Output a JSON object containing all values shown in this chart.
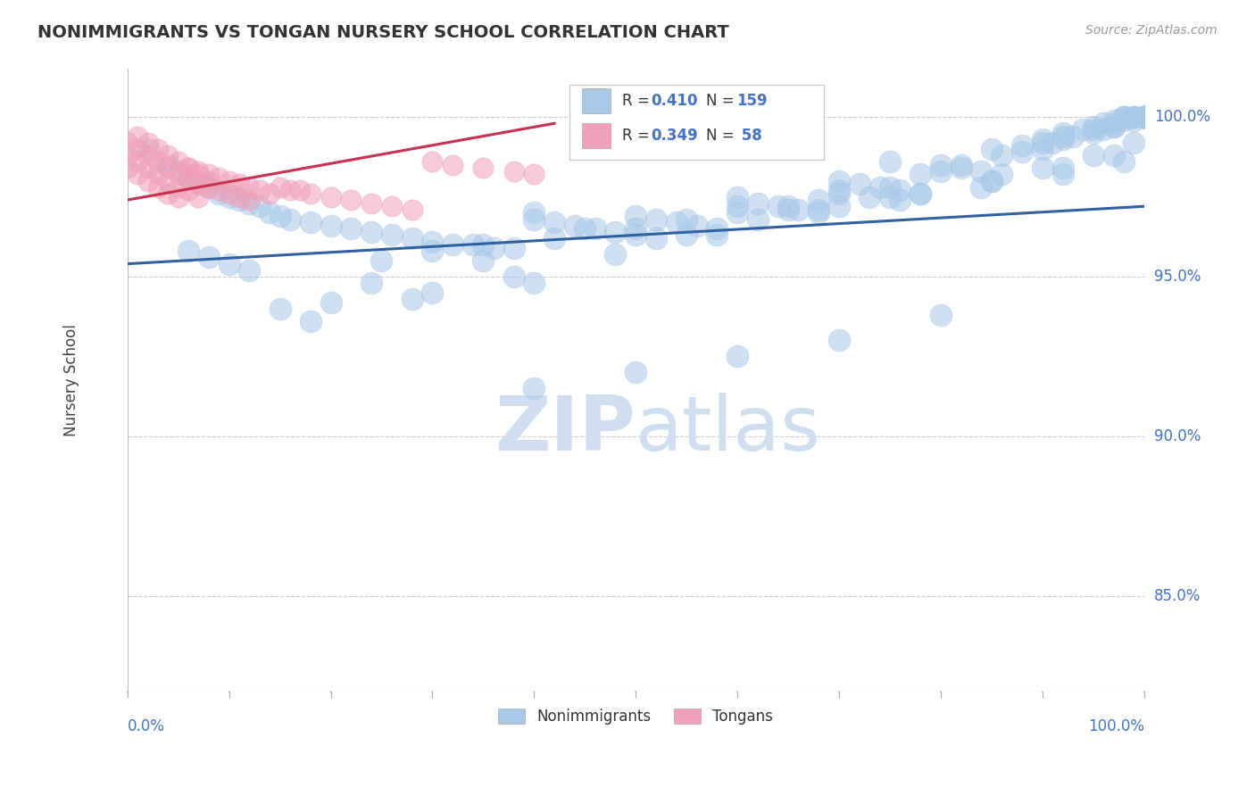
{
  "title": "NONIMMIGRANTS VS TONGAN NURSERY SCHOOL CORRELATION CHART",
  "source_text": "Source: ZipAtlas.com",
  "ylabel": "Nursery School",
  "ytick_labels": [
    "85.0%",
    "90.0%",
    "95.0%",
    "100.0%"
  ],
  "ytick_values": [
    0.85,
    0.9,
    0.95,
    1.0
  ],
  "blue_color": "#a8c8e8",
  "pink_color": "#f0a0b8",
  "blue_line_color": "#3060a0",
  "pink_line_color": "#c83050",
  "title_color": "#333333",
  "axis_label_color": "#4472c4",
  "watermark_color": "#d0dff0",
  "background_color": "#ffffff",
  "grid_color": "#cccccc",
  "xmin": 0.0,
  "xmax": 1.0,
  "ymin": 0.82,
  "ymax": 1.015,
  "blue_x": [
    0.02,
    0.04,
    0.05,
    0.06,
    0.07,
    0.08,
    0.09,
    0.1,
    0.11,
    0.12,
    0.13,
    0.14,
    0.15,
    0.16,
    0.18,
    0.2,
    0.22,
    0.24,
    0.26,
    0.28,
    0.3,
    0.32,
    0.34,
    0.36,
    0.38,
    0.4,
    0.4,
    0.42,
    0.44,
    0.46,
    0.48,
    0.5,
    0.5,
    0.52,
    0.54,
    0.56,
    0.58,
    0.6,
    0.6,
    0.62,
    0.64,
    0.66,
    0.68,
    0.7,
    0.7,
    0.72,
    0.74,
    0.75,
    0.76,
    0.78,
    0.8,
    0.8,
    0.82,
    0.84,
    0.85,
    0.86,
    0.88,
    0.88,
    0.9,
    0.9,
    0.91,
    0.92,
    0.92,
    0.93,
    0.94,
    0.95,
    0.95,
    0.96,
    0.96,
    0.97,
    0.97,
    0.97,
    0.98,
    0.98,
    0.98,
    0.98,
    0.99,
    0.99,
    0.99,
    0.99,
    1.0,
    1.0,
    1.0,
    1.0,
    1.0,
    1.0,
    1.0,
    1.0,
    1.0,
    1.0,
    1.0,
    1.0,
    1.0,
    1.0,
    1.0,
    1.0,
    1.0,
    1.0,
    1.0,
    1.0,
    0.06,
    0.08,
    0.1,
    0.12,
    0.24,
    0.3,
    0.35,
    0.42,
    0.5,
    0.55,
    0.6,
    0.65,
    0.68,
    0.7,
    0.73,
    0.75,
    0.78,
    0.82,
    0.86,
    0.9,
    0.92,
    0.95,
    0.97,
    0.99,
    0.15,
    0.2,
    0.3,
    0.4,
    0.52,
    0.62,
    0.7,
    0.78,
    0.85,
    0.9,
    0.95,
    0.18,
    0.28,
    0.38,
    0.48,
    0.58,
    0.68,
    0.76,
    0.84,
    0.92,
    0.98,
    0.25,
    0.35,
    0.45,
    0.55,
    0.65,
    0.75,
    0.85,
    0.92,
    0.97,
    0.99,
    0.4,
    0.5,
    0.6,
    0.7,
    0.8
  ],
  "blue_y": [
    0.99,
    0.985,
    0.983,
    0.981,
    0.979,
    0.978,
    0.976,
    0.975,
    0.974,
    0.973,
    0.972,
    0.97,
    0.969,
    0.968,
    0.967,
    0.966,
    0.965,
    0.964,
    0.963,
    0.962,
    0.961,
    0.96,
    0.96,
    0.959,
    0.959,
    0.97,
    0.968,
    0.967,
    0.966,
    0.965,
    0.964,
    0.963,
    0.969,
    0.968,
    0.967,
    0.966,
    0.965,
    0.975,
    0.972,
    0.973,
    0.972,
    0.971,
    0.971,
    0.98,
    0.977,
    0.979,
    0.978,
    0.986,
    0.977,
    0.976,
    0.985,
    0.983,
    0.984,
    0.983,
    0.99,
    0.982,
    0.991,
    0.989,
    0.993,
    0.99,
    0.992,
    0.995,
    0.993,
    0.994,
    0.996,
    0.997,
    0.995,
    0.998,
    0.996,
    0.999,
    0.997,
    0.998,
    1.0,
    0.999,
    1.0,
    1.0,
    1.0,
    1.0,
    1.0,
    1.0,
    1.0,
    1.0,
    1.0,
    1.0,
    1.0,
    1.0,
    1.0,
    1.0,
    1.0,
    1.0,
    1.0,
    1.0,
    1.0,
    1.0,
    1.0,
    1.0,
    1.0,
    1.0,
    1.0,
    1.0,
    0.958,
    0.956,
    0.954,
    0.952,
    0.948,
    0.958,
    0.955,
    0.962,
    0.965,
    0.963,
    0.97,
    0.972,
    0.974,
    0.976,
    0.975,
    0.978,
    0.982,
    0.985,
    0.988,
    0.992,
    0.994,
    0.996,
    0.997,
    0.999,
    0.94,
    0.942,
    0.945,
    0.948,
    0.962,
    0.968,
    0.972,
    0.976,
    0.98,
    0.984,
    0.988,
    0.936,
    0.943,
    0.95,
    0.957,
    0.963,
    0.97,
    0.974,
    0.978,
    0.982,
    0.986,
    0.955,
    0.96,
    0.965,
    0.968,
    0.971,
    0.975,
    0.98,
    0.984,
    0.988,
    0.992,
    0.915,
    0.92,
    0.925,
    0.93,
    0.938
  ],
  "pink_x": [
    0.0,
    0.0,
    0.0,
    0.01,
    0.01,
    0.01,
    0.02,
    0.02,
    0.02,
    0.03,
    0.03,
    0.03,
    0.04,
    0.04,
    0.04,
    0.05,
    0.05,
    0.05,
    0.06,
    0.06,
    0.06,
    0.07,
    0.07,
    0.07,
    0.08,
    0.08,
    0.09,
    0.09,
    0.1,
    0.1,
    0.11,
    0.11,
    0.12,
    0.12,
    0.13,
    0.14,
    0.15,
    0.16,
    0.17,
    0.18,
    0.2,
    0.22,
    0.24,
    0.26,
    0.28,
    0.3,
    0.32,
    0.35,
    0.38,
    0.4,
    0.01,
    0.02,
    0.03,
    0.04,
    0.05,
    0.06,
    0.07,
    0.08
  ],
  "pink_y": [
    0.992,
    0.988,
    0.984,
    0.99,
    0.986,
    0.982,
    0.988,
    0.984,
    0.98,
    0.986,
    0.982,
    0.978,
    0.984,
    0.98,
    0.976,
    0.982,
    0.978,
    0.975,
    0.984,
    0.981,
    0.977,
    0.983,
    0.979,
    0.975,
    0.982,
    0.978,
    0.981,
    0.977,
    0.98,
    0.976,
    0.979,
    0.975,
    0.978,
    0.974,
    0.977,
    0.976,
    0.978,
    0.977,
    0.977,
    0.976,
    0.975,
    0.974,
    0.973,
    0.972,
    0.971,
    0.986,
    0.985,
    0.984,
    0.983,
    0.982,
    0.994,
    0.992,
    0.99,
    0.988,
    0.986,
    0.984,
    0.982,
    0.98
  ],
  "blue_line_x": [
    0.0,
    1.0
  ],
  "blue_line_y": [
    0.954,
    0.972
  ],
  "pink_line_x": [
    0.0,
    0.42
  ],
  "pink_line_y": [
    0.974,
    0.998
  ]
}
